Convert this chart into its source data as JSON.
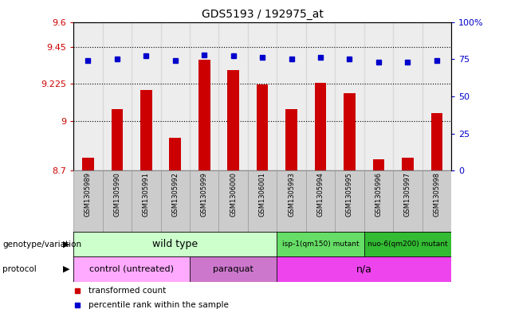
{
  "title": "GDS5193 / 192975_at",
  "samples": [
    "GSM1305989",
    "GSM1305990",
    "GSM1305991",
    "GSM1305992",
    "GSM1305999",
    "GSM1306000",
    "GSM1306001",
    "GSM1305993",
    "GSM1305994",
    "GSM1305995",
    "GSM1305996",
    "GSM1305997",
    "GSM1305998"
  ],
  "transformed_count": [
    8.78,
    9.07,
    9.19,
    8.9,
    9.37,
    9.31,
    9.22,
    9.07,
    9.23,
    9.17,
    8.77,
    8.78,
    9.05
  ],
  "percentile_rank": [
    74,
    75,
    77,
    74,
    78,
    77,
    76,
    75,
    76,
    75,
    73,
    73,
    74
  ],
  "bar_color": "#cc0000",
  "dot_color": "#0000cc",
  "ylim_left": [
    8.7,
    9.6
  ],
  "ylim_right": [
    0,
    100
  ],
  "yticks_left": [
    8.7,
    9.0,
    9.225,
    9.45,
    9.6
  ],
  "ytick_labels_left": [
    "8.7",
    "9",
    "9.225",
    "9.45",
    "9.6"
  ],
  "yticks_right": [
    0,
    25,
    50,
    75,
    100
  ],
  "ytick_labels_right": [
    "0",
    "25",
    "50",
    "75",
    "100%"
  ],
  "hlines": [
    9.0,
    9.225,
    9.45
  ],
  "genotype_groups": [
    {
      "label": "wild type",
      "start": 0,
      "end": 6,
      "color": "#ccffcc",
      "fontsize": 9
    },
    {
      "label": "isp-1(qm150) mutant",
      "start": 7,
      "end": 9,
      "color": "#66dd66",
      "fontsize": 7
    },
    {
      "label": "nuo-6(qm200) mutant",
      "start": 10,
      "end": 12,
      "color": "#33bb33",
      "fontsize": 7
    }
  ],
  "protocol_groups": [
    {
      "label": "control (untreated)",
      "start": 0,
      "end": 3,
      "color": "#ffaaff",
      "fontsize": 8
    },
    {
      "label": "paraquat",
      "start": 4,
      "end": 6,
      "color": "#dd88ee",
      "fontsize": 8
    },
    {
      "label": "n/a",
      "start": 7,
      "end": 12,
      "color": "#ee44ee",
      "fontsize": 9
    }
  ],
  "legend_items": [
    {
      "label": "transformed count",
      "color": "#cc0000"
    },
    {
      "label": "percentile rank within the sample",
      "color": "#0000cc"
    }
  ],
  "tick_color_left": "#cc0000",
  "tick_color_right": "#0000cc",
  "sample_bg_color": "#cccccc",
  "sample_border_color": "#999999",
  "plot_bg": "#ffffff"
}
